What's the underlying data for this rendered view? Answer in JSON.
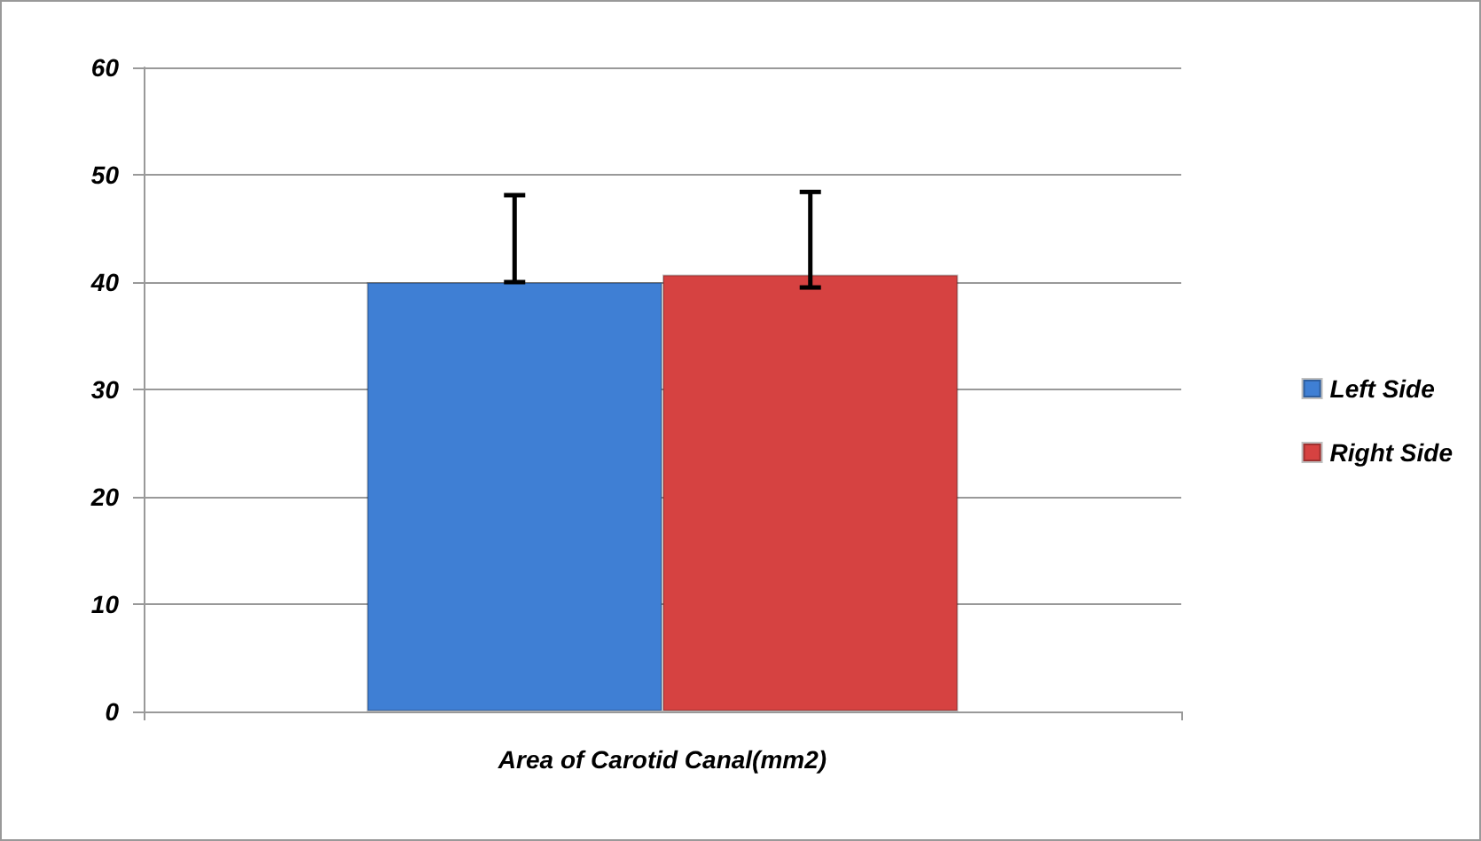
{
  "chart_data": {
    "type": "bar",
    "categories": [
      "Area of Carotid Canal(mm2)"
    ],
    "series": [
      {
        "name": "Left Side",
        "color": "#3f7fd4",
        "values": [
          40.0
        ],
        "errors": [
          [
            40.0,
            48.1
          ]
        ]
      },
      {
        "name": "Right Side",
        "color": "#d64241",
        "values": [
          40.7
        ],
        "errors": [
          [
            39.5,
            48.4
          ]
        ]
      }
    ],
    "ylim": [
      0,
      60
    ],
    "yticks": [
      0,
      10,
      20,
      30,
      40,
      50,
      60
    ],
    "grid": "y",
    "legend": "right"
  }
}
